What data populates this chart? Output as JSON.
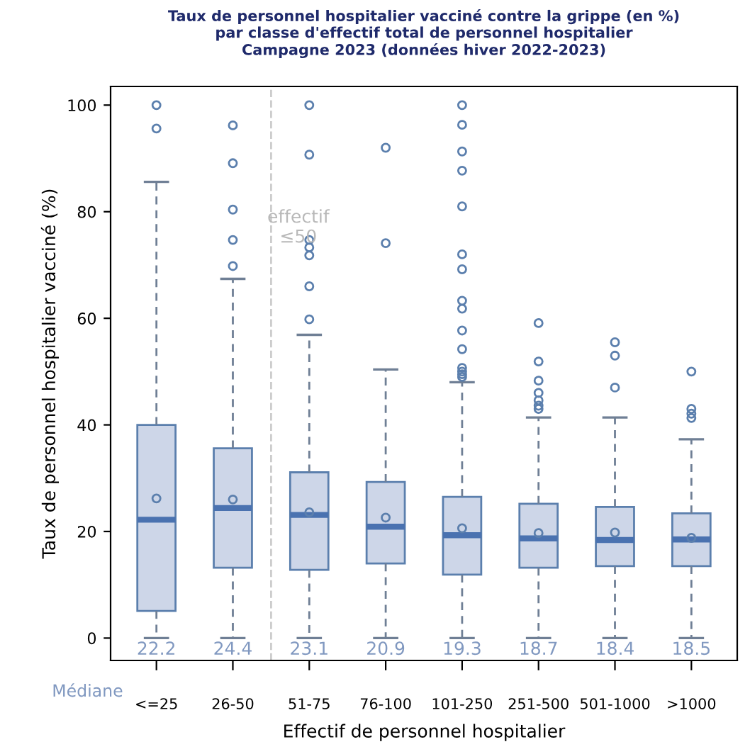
{
  "chart_data": {
    "type": "box",
    "title": "Taux de personnel hospitalier vacciné contre la grippe (en %)\npar classe d'effectif total de personnel hospitalier\nCampagne 2023 (données hiver 2022-2023)",
    "xlabel": "Effectif de personnel hospitalier",
    "ylabel": "Taux de personnel hospitalier vacciné (%)",
    "categories": [
      "<=25",
      "26-50",
      "51-75",
      "76-100",
      "101-250",
      "251-500",
      "501-1000",
      ">1000"
    ],
    "color": "#cdd6e8",
    "boxes": [
      {
        "low": 0,
        "q1": 5.1,
        "median": 22.2,
        "q3": 40,
        "high": 85.6,
        "mean": 26.2,
        "outliers": [
          100,
          95.6
        ]
      },
      {
        "low": 0,
        "q1": 13.2,
        "median": 24.4,
        "q3": 35.6,
        "high": 67.4,
        "mean": 26,
        "outliers": [
          96.2,
          89.1,
          80.4,
          74.7,
          69.8
        ]
      },
      {
        "low": 0,
        "q1": 12.8,
        "median": 23.1,
        "q3": 31.1,
        "high": 56.9,
        "mean": 23.6,
        "outliers": [
          100,
          90.7,
          74.7,
          73.3,
          71.8,
          66,
          59.8
        ]
      },
      {
        "low": 0,
        "q1": 14,
        "median": 20.9,
        "q3": 29.3,
        "high": 50.4,
        "mean": 22.6,
        "outliers": [
          92,
          74.1
        ]
      },
      {
        "low": 0,
        "q1": 11.9,
        "median": 19.3,
        "q3": 26.5,
        "high": 48,
        "mean": 20.6,
        "outliers": [
          100,
          96.3,
          91.3,
          87.7,
          81,
          72,
          69.2,
          63.3,
          61.8,
          57.7,
          54.2,
          50.7,
          50,
          49.5,
          49
        ]
      },
      {
        "low": 0,
        "q1": 13.2,
        "median": 18.7,
        "q3": 25.2,
        "high": 41.4,
        "mean": 19.7,
        "outliers": [
          59.1,
          51.9,
          48.3,
          46,
          44.6,
          43.6,
          43
        ]
      },
      {
        "low": 0,
        "q1": 13.5,
        "median": 18.4,
        "q3": 24.6,
        "high": 41.4,
        "mean": 19.8,
        "outliers": [
          55.5,
          53,
          47
        ]
      },
      {
        "low": 0,
        "q1": 13.5,
        "median": 18.5,
        "q3": 23.4,
        "high": 37.3,
        "mean": 18.8,
        "outliers": [
          50,
          43,
          42.1,
          41.3
        ]
      }
    ],
    "value_labels": [
      "22.2",
      "24.4",
      "23.1",
      "20.9",
      "19.3",
      "18.7",
      "18.4",
      "18.5"
    ],
    "annotations": [
      "Médiane",
      "effectif\n≤50"
    ],
    "ylim": [
      -4.2,
      103.5
    ],
    "yticks": [
      0,
      20,
      40,
      60,
      80,
      100
    ],
    "grid": false,
    "legend": false
  }
}
